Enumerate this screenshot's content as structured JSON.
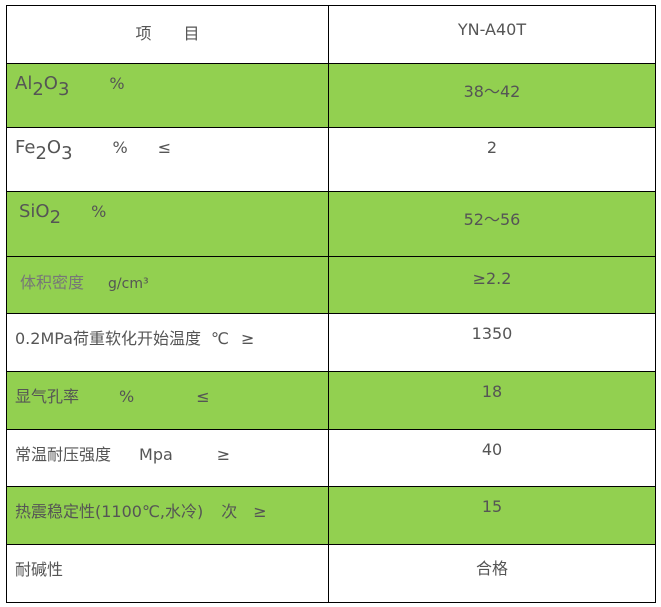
{
  "header": {
    "item": "项　　目",
    "model": "YN-A40T"
  },
  "accent_color": "#92d050",
  "rows": [
    {
      "label_main": "Al",
      "sub1": "2",
      "mid": "O",
      "sub2": "3",
      "unit": "%",
      "sign": "",
      "value": "38～42",
      "green": true
    },
    {
      "label_main": "Fe",
      "sub1": "2",
      "mid": "O",
      "sub2": "3",
      "unit": "%",
      "sign": "≤",
      "value": "2",
      "green": false
    },
    {
      "label_main": "SiO",
      "sub1": "2",
      "unit": "%",
      "sign": "",
      "value": "52～56",
      "green": true
    },
    {
      "label_main": "体积密度",
      "unit": "g/cm³",
      "sign": "",
      "value": "≥2.2",
      "green": true
    },
    {
      "label_main": "0.2MPa荷重软化开始温度",
      "unit": "℃",
      "sign": "≥",
      "value": "1350",
      "green": false
    },
    {
      "label_main": "显气孔率",
      "unit": "%",
      "sign": "≤",
      "value": "18",
      "green": true
    },
    {
      "label_main": "常温耐压强度",
      "unit": "Mpa",
      "sign": "≥",
      "value": "40",
      "green": false
    },
    {
      "label_main": "热震稳定性(1100℃,水冷)",
      "unit": "次",
      "sign": "≥",
      "value": "15",
      "green": true
    },
    {
      "label_main": "耐碱性",
      "unit": "",
      "sign": "",
      "value": "合格",
      "green": false
    }
  ]
}
